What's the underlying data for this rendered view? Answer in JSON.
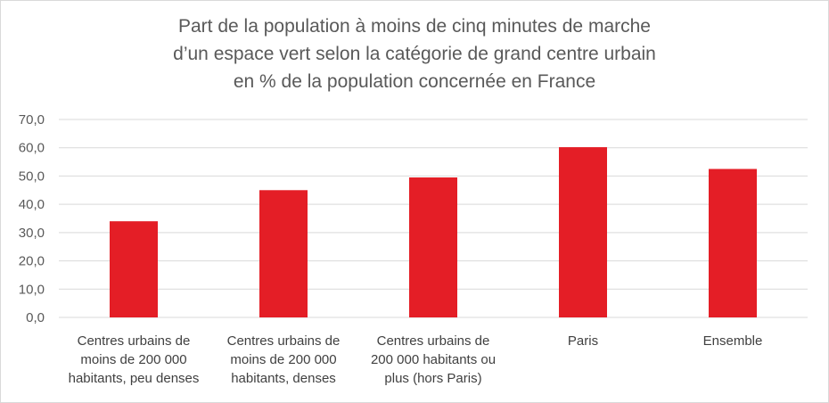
{
  "chart_data": {
    "type": "bar",
    "title_lines": [
      "Part de la population à moins de cinq minutes de marche",
      "d’un espace vert selon la catégorie de grand centre urbain",
      "en % de la population concernée en France"
    ],
    "categories": [
      [
        "Centres urbains de",
        "moins de 200 000",
        "habitants, peu denses"
      ],
      [
        "Centres urbains de",
        "moins de 200 000",
        "habitants, denses"
      ],
      [
        "Centres urbains de",
        "200 000 habitants ou",
        "plus (hors Paris)"
      ],
      [
        "Paris"
      ],
      [
        "Ensemble"
      ]
    ],
    "values": [
      34.0,
      45.0,
      49.5,
      60.2,
      52.5
    ],
    "ylim": [
      0,
      70
    ],
    "yticks": [
      "0,0",
      "10,0",
      "20,0",
      "30,0",
      "40,0",
      "50,0",
      "60,0",
      "70,0"
    ],
    "grid": true,
    "bar_color": "#e41e26",
    "grid_color": "#d9d9d9"
  }
}
